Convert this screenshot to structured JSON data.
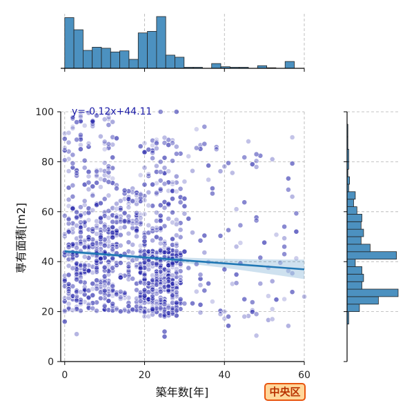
{
  "chart_data": {
    "type": "scatter",
    "xlabel": "築年数[年]",
    "ylabel": "専有面積[m2]",
    "xlim": [
      -1,
      60
    ],
    "ylim": [
      0,
      100
    ],
    "xticks": [
      "0",
      "20",
      "40",
      "60"
    ],
    "yticks": [
      "0",
      "20",
      "40",
      "60",
      "80",
      "100"
    ],
    "grid": true,
    "annotation": "y=-0.12x+44.11",
    "badge": "中央区",
    "colors": {
      "points": "#1a1aa6",
      "regression": "#1f77b4",
      "hist": "#4c91c0",
      "badge_border": "#e8540e",
      "badge_fill": "#ffd79a"
    },
    "regression": {
      "slope": -0.12,
      "intercept": 44.11,
      "x_range": [
        0,
        60
      ]
    },
    "scatter_groups": [
      {
        "x_range": [
          0,
          13
        ],
        "y_range": [
          20,
          60
        ],
        "count": 340
      },
      {
        "x_range": [
          0,
          13
        ],
        "y_range": [
          60,
          100
        ],
        "count": 110
      },
      {
        "x_range": [
          13,
          20
        ],
        "y_range": [
          20,
          70
        ],
        "count": 140
      },
      {
        "x_range": [
          19,
          29
        ],
        "y_range": [
          18,
          45
        ],
        "count": 320
      },
      {
        "x_range": [
          19,
          29
        ],
        "y_range": [
          45,
          90
        ],
        "count": 110
      },
      {
        "x_range": [
          29,
          60
        ],
        "y_range": [
          10,
          90
        ],
        "count": 90
      }
    ],
    "scatter_points": [
      [
        0,
        16
      ],
      [
        3,
        11
      ],
      [
        25,
        10
      ],
      [
        25,
        12
      ],
      [
        39,
        19
      ],
      [
        40,
        20
      ],
      [
        41,
        18
      ],
      [
        45,
        18
      ],
      [
        52,
        17
      ],
      [
        55,
        46
      ],
      [
        55,
        43
      ],
      [
        55,
        25
      ],
      [
        48,
        19
      ],
      [
        57,
        66
      ],
      [
        55,
        54
      ],
      [
        38,
        85
      ],
      [
        48,
        83
      ],
      [
        52,
        81
      ],
      [
        35,
        94
      ],
      [
        33,
        93
      ],
      [
        28,
        100
      ],
      [
        24,
        100
      ],
      [
        10,
        97
      ],
      [
        30,
        44
      ],
      [
        33,
        28
      ],
      [
        37,
        24
      ],
      [
        52,
        21
      ]
    ],
    "hist_top": {
      "bin_edges": [
        0,
        2.3,
        4.6,
        6.9,
        9.2,
        11.5,
        13.8,
        16.1,
        18.4,
        20.7,
        23,
        25.3,
        27.6,
        29.9,
        32.2,
        34.5,
        36.8,
        39.1,
        41.4,
        43.7,
        46,
        48.3,
        50.6,
        52.9,
        55.2,
        57.5,
        59.8
      ],
      "counts": [
        96,
        73,
        34,
        40,
        38,
        31,
        33,
        17,
        67,
        70,
        98,
        25,
        21,
        2,
        2,
        0,
        9,
        3,
        2,
        2,
        0,
        5,
        1,
        0,
        13,
        0
      ]
    },
    "hist_right": {
      "bin_edges": [
        0,
        5,
        10,
        15,
        20,
        23,
        26,
        29,
        32,
        35,
        38,
        41,
        44,
        47,
        50,
        53,
        56,
        59,
        62,
        65,
        68,
        71,
        74,
        77,
        80,
        85,
        90,
        95,
        100
      ],
      "counts": [
        0,
        0,
        0,
        2,
        15,
        38,
        62,
        18,
        20,
        18,
        10,
        60,
        28,
        17,
        20,
        17,
        18,
        12,
        8,
        10,
        2,
        3,
        1,
        2,
        2,
        1,
        1,
        0
      ]
    }
  }
}
